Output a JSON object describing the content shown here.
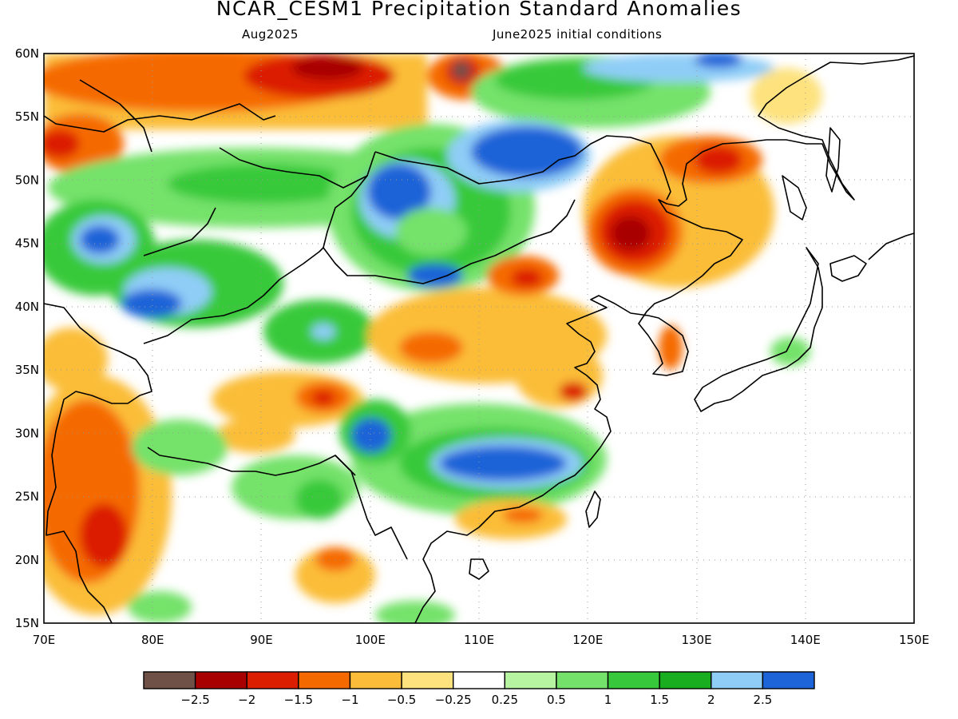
{
  "title": "NCAR_CESM1 Precipitation Standard Anomalies",
  "subtitle_left": "Aug2025",
  "subtitle_right": "June2025 initial conditions",
  "lat_labels": [
    "60N",
    "55N",
    "50N",
    "45N",
    "40N",
    "35N",
    "30N",
    "25N",
    "20N",
    "15N"
  ],
  "lon_labels": [
    "70E",
    "80E",
    "90E",
    "100E",
    "110E",
    "120E",
    "130E",
    "140E",
    "150E"
  ],
  "colorbar": {
    "colors": [
      "#6f5148",
      "#a80000",
      "#dc1e00",
      "#f56a00",
      "#fbbd39",
      "#fde27e",
      "#ffffff",
      "#b7f4a2",
      "#74e26a",
      "#37c93b",
      "#19ad20",
      "#8fcdf7",
      "#1d64d8"
    ],
    "tick_labels": [
      "−2.5",
      "−2",
      "−1.5",
      "−1",
      "−0.5",
      "−0.25",
      "0.25",
      "0.5",
      "1",
      "1.5",
      "2",
      "2.5"
    ]
  }
}
